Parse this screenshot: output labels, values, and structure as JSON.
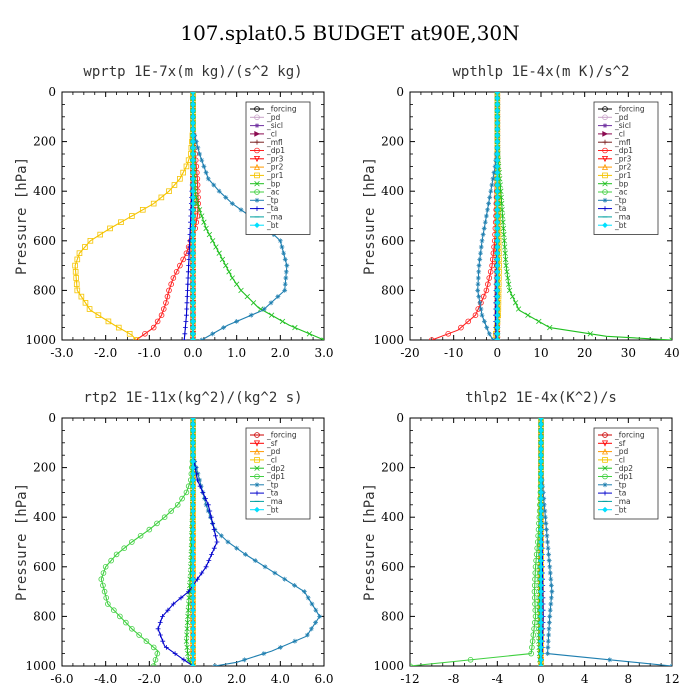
{
  "figure_title": "107.splat0.5  BUDGET at90E,30N",
  "chart_data": [
    {
      "type": "line",
      "title": "wprtp  1E-7x(m kg)/(s^2 kg)",
      "ylabel": "Pressure [hPa]",
      "xlim": [
        -3.0,
        3.0
      ],
      "ylim": [
        1000,
        0
      ],
      "xticks": [
        "-3.0",
        "-2.0",
        "-1.0",
        "0.0",
        "1.0",
        "2.0",
        "3.0"
      ],
      "yticks": [
        "0",
        "200",
        "400",
        "600",
        "800",
        "1000"
      ],
      "grid": false,
      "legend_position": "upper-right",
      "legend": [
        "_forcing",
        "_pd",
        "_sicl",
        "_cl",
        "_mfl",
        "_dp1",
        "_pr3",
        "_pr2",
        "_pr1",
        "_bp",
        "_ac",
        "_tp",
        "_ta",
        "_ma",
        "_bt"
      ],
      "series": [
        {
          "name": "_forcing",
          "color": "#000000",
          "marker": "o",
          "x": [
            0,
            0
          ],
          "y": [
            0,
            1000
          ]
        },
        {
          "name": "_pd",
          "color": "#c8a2c8",
          "marker": "o",
          "x": [
            0,
            0
          ],
          "y": [
            0,
            1000
          ]
        },
        {
          "name": "_sicl",
          "color": "#7030a0",
          "marker": "*",
          "x": [
            0,
            0
          ],
          "y": [
            0,
            1000
          ]
        },
        {
          "name": "_cl",
          "color": "#8b0a50",
          "marker": ">",
          "x": [
            0,
            0
          ],
          "y": [
            0,
            1000
          ]
        },
        {
          "name": "_mfl",
          "color": "#7a1f1f",
          "marker": "+",
          "x": [
            0,
            0
          ],
          "y": [
            0,
            1000
          ]
        },
        {
          "name": "_dp1",
          "color": "#ff2020",
          "marker": "o",
          "x": [
            0,
            0,
            0.05,
            0.1,
            0.12,
            0.1,
            0.05,
            -0.05,
            -0.15,
            -0.3,
            -0.45,
            -0.55,
            -0.62,
            -0.72,
            -0.9,
            -1.3
          ],
          "y": [
            0,
            150,
            250,
            350,
            450,
            500,
            550,
            600,
            650,
            700,
            750,
            800,
            850,
            900,
            950,
            1000
          ]
        },
        {
          "name": "_pr3",
          "color": "#ff0000",
          "marker": "v",
          "x": [
            0,
            0
          ],
          "y": [
            0,
            1000
          ]
        },
        {
          "name": "_pr2",
          "color": "#ff9900",
          "marker": "^",
          "x": [
            0,
            0
          ],
          "y": [
            0,
            1000
          ]
        },
        {
          "name": "_pr1",
          "color": "#f5c400",
          "marker": "s",
          "x": [
            0,
            0,
            -0.05,
            -0.15,
            -0.3,
            -0.55,
            -0.9,
            -1.4,
            -1.9,
            -2.35,
            -2.6,
            -2.7,
            -2.65,
            -2.35,
            -1.8,
            -1.4,
            -1.3
          ],
          "y": [
            0,
            150,
            250,
            300,
            350,
            400,
            450,
            500,
            550,
            600,
            650,
            700,
            800,
            880,
            940,
            980,
            1000
          ]
        },
        {
          "name": "_bp",
          "color": "#20c020",
          "marker": "x",
          "x": [
            0,
            0,
            0.02,
            0.05,
            0.1,
            0.2,
            0.3,
            0.45,
            0.6,
            0.75,
            0.9,
            1.1,
            1.5,
            2.2,
            2.8,
            3.0
          ],
          "y": [
            0,
            200,
            300,
            400,
            450,
            500,
            550,
            600,
            650,
            700,
            750,
            800,
            870,
            940,
            985,
            1000
          ]
        },
        {
          "name": "_ac",
          "color": "#40d040",
          "marker": "o",
          "x": [
            0,
            0
          ],
          "y": [
            0,
            1000
          ]
        },
        {
          "name": "_tp",
          "color": "#1f7fb0",
          "marker": "*",
          "x": [
            0,
            0,
            0.15,
            0.35,
            0.6,
            0.9,
            1.3,
            1.7,
            2.0,
            2.15,
            2.1,
            1.6,
            0.8,
            0.35,
            0.2
          ],
          "y": [
            0,
            150,
            250,
            350,
            400,
            450,
            500,
            550,
            600,
            700,
            800,
            880,
            940,
            985,
            1000
          ]
        },
        {
          "name": "_ta",
          "color": "#0000cc",
          "marker": "+",
          "x": [
            0,
            0,
            -0.05,
            -0.1,
            -0.15,
            -0.2
          ],
          "y": [
            0,
            300,
            500,
            700,
            900,
            1000
          ]
        },
        {
          "name": "_ma",
          "color": "#00a0a0",
          "marker": "-",
          "x": [
            0,
            0
          ],
          "y": [
            0,
            1000
          ]
        },
        {
          "name": "_bt",
          "color": "#00e0ff",
          "marker": "D",
          "x": [
            0,
            0
          ],
          "y": [
            0,
            1000
          ]
        }
      ]
    },
    {
      "type": "line",
      "title": "wpthlp  1E-4x(m K)/s^2",
      "ylabel": "Pressure [hPa]",
      "xlim": [
        -20,
        40
      ],
      "ylim": [
        1000,
        0
      ],
      "xticks": [
        "-20",
        "-10",
        "0",
        "10",
        "20",
        "30",
        "40"
      ],
      "yticks": [
        "0",
        "200",
        "400",
        "600",
        "800",
        "1000"
      ],
      "grid": false,
      "legend_position": "upper-right",
      "legend": [
        "_forcing",
        "_pd",
        "_sicl",
        "_cl",
        "_mfl",
        "_dp1",
        "_pr3",
        "_pr2",
        "_pr1",
        "_bp",
        "_ac",
        "_tp",
        "_ta",
        "_ma",
        "_bt"
      ],
      "series": [
        {
          "name": "_forcing",
          "color": "#000000",
          "marker": "o",
          "x": [
            0,
            0
          ],
          "y": [
            0,
            1000
          ]
        },
        {
          "name": "_pd",
          "color": "#c8a2c8",
          "marker": "o",
          "x": [
            0,
            0
          ],
          "y": [
            0,
            1000
          ]
        },
        {
          "name": "_sicl",
          "color": "#7030a0",
          "marker": "*",
          "x": [
            0,
            0
          ],
          "y": [
            0,
            1000
          ]
        },
        {
          "name": "_cl",
          "color": "#8b0a50",
          "marker": ">",
          "x": [
            0,
            0
          ],
          "y": [
            0,
            1000
          ]
        },
        {
          "name": "_mfl",
          "color": "#7a1f1f",
          "marker": "+",
          "x": [
            0,
            0
          ],
          "y": [
            0,
            1000
          ]
        },
        {
          "name": "_dp1",
          "color": "#ff2020",
          "marker": "o",
          "x": [
            0,
            0,
            -0.3,
            -0.6,
            -1.2,
            -2.5,
            -5,
            -9,
            -15
          ],
          "y": [
            0,
            300,
            500,
            600,
            700,
            800,
            900,
            960,
            1000
          ]
        },
        {
          "name": "_pr3",
          "color": "#ff0000",
          "marker": "v",
          "x": [
            0,
            0
          ],
          "y": [
            0,
            1000
          ]
        },
        {
          "name": "_pr2",
          "color": "#ff9900",
          "marker": "^",
          "x": [
            0,
            0
          ],
          "y": [
            0,
            1000
          ]
        },
        {
          "name": "_pr1",
          "color": "#f5c400",
          "marker": "s",
          "x": [
            0,
            0,
            0.2,
            0.4,
            0.2,
            -0.5
          ],
          "y": [
            0,
            300,
            500,
            700,
            900,
            1000
          ]
        },
        {
          "name": "_bp",
          "color": "#20c020",
          "marker": "x",
          "x": [
            0,
            0,
            0.3,
            0.8,
            1.2,
            1.6,
            2.0,
            2.8,
            5,
            12,
            25,
            40
          ],
          "y": [
            0,
            200,
            300,
            400,
            500,
            600,
            700,
            800,
            880,
            950,
            985,
            1000
          ]
        },
        {
          "name": "_ac",
          "color": "#40d040",
          "marker": "o",
          "x": [
            0,
            0
          ],
          "y": [
            0,
            1000
          ]
        },
        {
          "name": "_tp",
          "color": "#1f7fb0",
          "marker": "*",
          "x": [
            0,
            0,
            -0.5,
            -1.5,
            -2.5,
            -3.5,
            -4.2,
            -4.5,
            -3.5,
            -2,
            -1
          ],
          "y": [
            0,
            200,
            300,
            400,
            500,
            600,
            700,
            800,
            900,
            970,
            1000
          ]
        },
        {
          "name": "_ta",
          "color": "#0000cc",
          "marker": "+",
          "x": [
            0,
            0,
            -0.2,
            -0.4,
            -0.3
          ],
          "y": [
            0,
            400,
            700,
            900,
            1000
          ]
        },
        {
          "name": "_ma",
          "color": "#00a0a0",
          "marker": "-",
          "x": [
            0,
            0
          ],
          "y": [
            0,
            1000
          ]
        },
        {
          "name": "_bt",
          "color": "#00e0ff",
          "marker": "D",
          "x": [
            0,
            0
          ],
          "y": [
            0,
            1000
          ]
        }
      ]
    },
    {
      "type": "line",
      "title": "rtp2  1E-11x(kg^2)/(kg^2 s)",
      "ylabel": "Pressure [hPa]",
      "xlim": [
        -6.0,
        6.0
      ],
      "ylim": [
        1000,
        0
      ],
      "xticks": [
        "-6.0",
        "-4.0",
        "-2.0",
        "0.0",
        "2.0",
        "4.0",
        "6.0"
      ],
      "yticks": [
        "0",
        "200",
        "400",
        "600",
        "800",
        "1000"
      ],
      "grid": false,
      "legend_position": "upper-right",
      "legend": [
        "_forcing",
        "_sf",
        "_pd",
        "_cl",
        "_dp2",
        "_dp1",
        "_tp",
        "_ta",
        "_ma",
        "_bt"
      ],
      "series": [
        {
          "name": "_forcing",
          "color": "#cc0000",
          "marker": "o",
          "x": [
            0,
            0
          ],
          "y": [
            0,
            1000
          ]
        },
        {
          "name": "_sf",
          "color": "#ff0000",
          "marker": "v",
          "x": [
            0,
            0
          ],
          "y": [
            0,
            1000
          ]
        },
        {
          "name": "_pd",
          "color": "#ff9900",
          "marker": "^",
          "x": [
            0,
            0
          ],
          "y": [
            0,
            1000
          ]
        },
        {
          "name": "_cl",
          "color": "#f5c400",
          "marker": "s",
          "x": [
            0,
            0
          ],
          "y": [
            0,
            1000
          ]
        },
        {
          "name": "_dp2",
          "color": "#20c020",
          "marker": "x",
          "x": [
            0,
            0,
            -0.1,
            -0.3,
            -0.2,
            0
          ],
          "y": [
            0,
            300,
            600,
            900,
            980,
            1000
          ]
        },
        {
          "name": "_dp1",
          "color": "#40d040",
          "marker": "o",
          "x": [
            0,
            0,
            -0.1,
            -0.3,
            -0.7,
            -1.3,
            -2.0,
            -2.8,
            -3.5,
            -4.0,
            -4.2,
            -3.9,
            -2.8,
            -1.6,
            -1.8
          ],
          "y": [
            0,
            150,
            250,
            300,
            350,
            400,
            450,
            500,
            550,
            600,
            650,
            750,
            850,
            940,
            1000
          ]
        },
        {
          "name": "_tp",
          "color": "#1f7fb0",
          "marker": "*",
          "x": [
            0,
            0,
            0.3,
            0.6,
            1.0,
            1.6,
            2.4,
            3.3,
            4.2,
            5.1,
            5.8,
            5.2,
            3.6,
            2.0,
            1.0
          ],
          "y": [
            0,
            150,
            250,
            350,
            450,
            500,
            550,
            600,
            650,
            700,
            800,
            880,
            940,
            985,
            1000
          ]
        },
        {
          "name": "_ta",
          "color": "#0000cc",
          "marker": "+",
          "x": [
            0,
            0,
            0.2,
            0.7,
            1.1,
            0.6,
            -0.2,
            -0.9,
            -1.4,
            -1.6,
            -1.3,
            -0.5,
            0
          ],
          "y": [
            0,
            150,
            250,
            350,
            500,
            600,
            700,
            750,
            800,
            850,
            920,
            970,
            1000
          ]
        },
        {
          "name": "_ma",
          "color": "#00a0a0",
          "marker": "-",
          "x": [
            0,
            0
          ],
          "y": [
            0,
            1000
          ]
        },
        {
          "name": "_bt",
          "color": "#00e0ff",
          "marker": "D",
          "x": [
            0,
            0
          ],
          "y": [
            0,
            1000
          ]
        }
      ]
    },
    {
      "type": "line",
      "title": "thlp2  1E-4x(K^2)/s",
      "ylabel": "Pressure [hPa]",
      "xlim": [
        -12,
        12
      ],
      "ylim": [
        1000,
        0
      ],
      "xticks": [
        "-12",
        "-8",
        "-4",
        "0",
        "4",
        "8",
        "12"
      ],
      "yticks": [
        "0",
        "200",
        "400",
        "600",
        "800",
        "1000"
      ],
      "grid": false,
      "legend_position": "upper-right",
      "legend": [
        "_forcing",
        "_sf",
        "_pd",
        "_cl",
        "_dp2",
        "_dp1",
        "_tp",
        "_ta",
        "_ma",
        "_bt"
      ],
      "series": [
        {
          "name": "_forcing",
          "color": "#cc0000",
          "marker": "o",
          "x": [
            0,
            0
          ],
          "y": [
            0,
            1000
          ]
        },
        {
          "name": "_sf",
          "color": "#ff0000",
          "marker": "v",
          "x": [
            0,
            0
          ],
          "y": [
            0,
            1000
          ]
        },
        {
          "name": "_pd",
          "color": "#ff9900",
          "marker": "^",
          "x": [
            0,
            0
          ],
          "y": [
            0,
            1000
          ]
        },
        {
          "name": "_cl",
          "color": "#f5c400",
          "marker": "s",
          "x": [
            0,
            0
          ],
          "y": [
            0,
            1000
          ]
        },
        {
          "name": "_dp2",
          "color": "#20c020",
          "marker": "x",
          "x": [
            0,
            0,
            -0.1,
            -0.2,
            -0.1,
            0
          ],
          "y": [
            0,
            300,
            600,
            900,
            980,
            1000
          ]
        },
        {
          "name": "_dp1",
          "color": "#40d040",
          "marker": "o",
          "x": [
            0,
            0,
            -0.05,
            -0.15,
            -0.3,
            -0.5,
            -0.6,
            -0.5,
            -0.9,
            -12
          ],
          "y": [
            0,
            200,
            300,
            400,
            500,
            600,
            700,
            800,
            950,
            1000
          ]
        },
        {
          "name": "_tp",
          "color": "#1f7fb0",
          "marker": "*",
          "x": [
            0,
            0,
            0.2,
            0.4,
            0.6,
            0.8,
            1.0,
            0.8,
            0.6,
            12
          ],
          "y": [
            0,
            200,
            300,
            400,
            500,
            600,
            700,
            800,
            950,
            1000
          ]
        },
        {
          "name": "_ta",
          "color": "#0000cc",
          "marker": "+",
          "x": [
            0,
            0,
            0.1,
            0.2,
            0.1,
            0
          ],
          "y": [
            0,
            300,
            500,
            800,
            950,
            1000
          ]
        },
        {
          "name": "_ma",
          "color": "#00a0a0",
          "marker": "-",
          "x": [
            0,
            0
          ],
          "y": [
            0,
            1000
          ]
        },
        {
          "name": "_bt",
          "color": "#00e0ff",
          "marker": "D",
          "x": [
            0,
            0
          ],
          "y": [
            0,
            1000
          ]
        }
      ]
    }
  ]
}
